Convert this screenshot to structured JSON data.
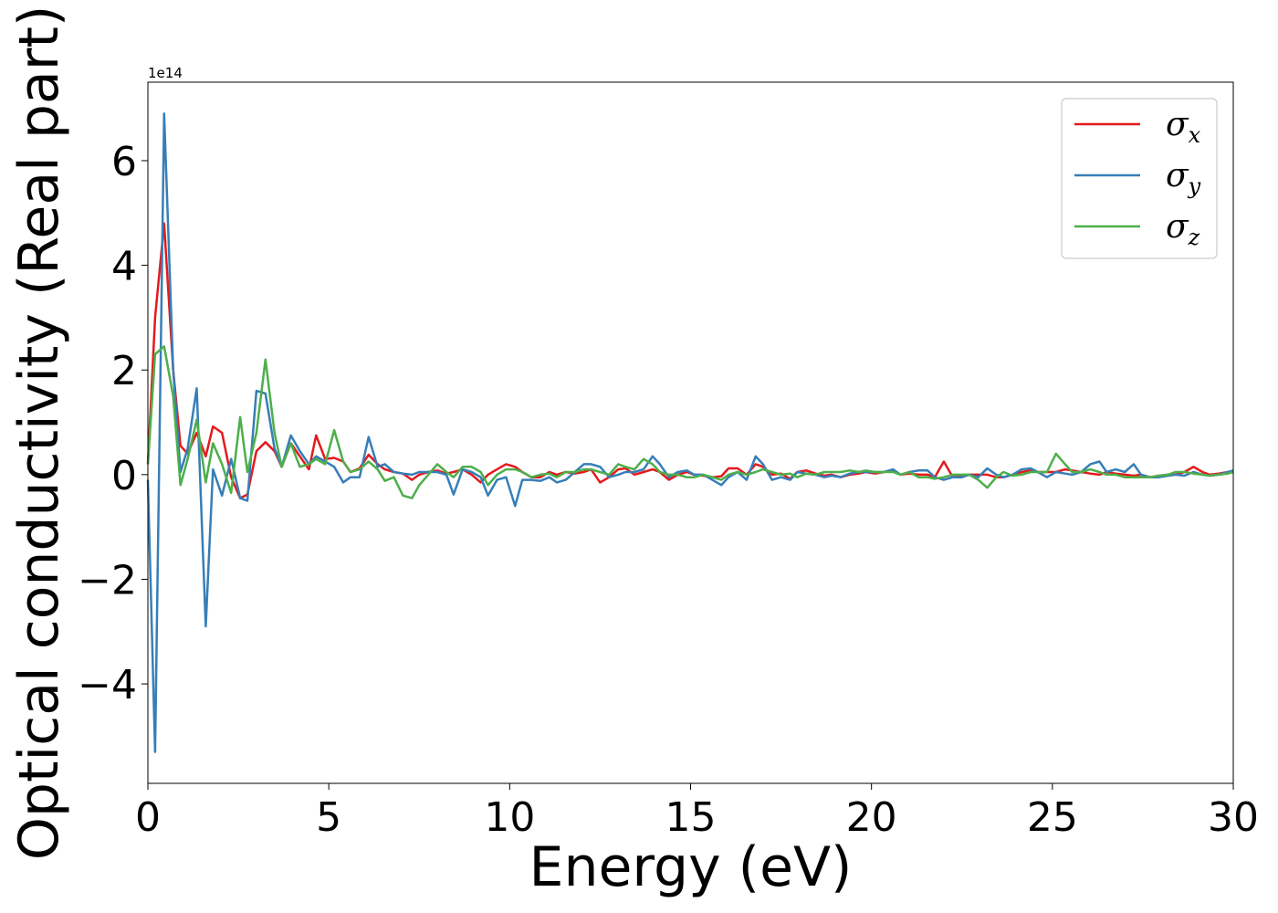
{
  "chart_data": {
    "type": "line",
    "xlabel": "Energy (eV)",
    "ylabel": "Optical conductivity (Real part)",
    "y_offset_text": "1e14",
    "xlim": [
      0,
      30
    ],
    "ylim": [
      -5.9,
      7.5
    ],
    "xticks": [
      0,
      5,
      10,
      15,
      20,
      25,
      30
    ],
    "yticks": [
      -4,
      -2,
      0,
      2,
      4,
      6
    ],
    "grid": false,
    "legend_position": "top-right",
    "x": [
      0,
      0.2,
      0.45,
      0.7,
      0.9,
      1.1,
      1.35,
      1.6,
      1.8,
      2.05,
      2.3,
      2.55,
      2.75,
      3.0,
      3.25,
      3.5,
      3.7,
      3.95,
      4.2,
      4.45,
      4.65,
      4.9,
      5.15,
      5.4,
      5.6,
      5.85,
      6.1,
      6.35,
      6.55,
      6.8,
      7.05,
      7.3,
      7.5,
      7.75,
      8.0,
      8.25,
      8.45,
      8.7,
      8.95,
      9.2,
      9.4,
      9.65,
      9.9,
      10.15,
      10.35,
      10.6,
      10.85,
      11.1,
      11.3,
      11.55,
      11.8,
      12.05,
      12.25,
      12.5,
      12.75,
      13.0,
      13.2,
      13.45,
      13.7,
      13.95,
      14.15,
      14.4,
      14.65,
      14.9,
      15.1,
      15.35,
      15.6,
      15.85,
      16.05,
      16.3,
      16.55,
      16.8,
      17.0,
      17.25,
      17.5,
      17.75,
      17.95,
      18.2,
      18.45,
      18.7,
      18.9,
      19.15,
      19.4,
      19.65,
      19.85,
      20.1,
      20.35,
      20.6,
      20.8,
      21.05,
      21.3,
      21.55,
      21.75,
      22.0,
      22.25,
      22.5,
      22.7,
      22.95,
      23.2,
      23.45,
      23.65,
      23.9,
      24.15,
      24.4,
      24.6,
      24.85,
      25.1,
      25.35,
      25.55,
      25.8,
      26.05,
      26.3,
      26.5,
      26.75,
      27.0,
      27.25,
      27.45,
      27.7,
      27.95,
      28.2,
      28.4,
      28.65,
      28.9,
      29.15,
      29.35,
      29.6,
      29.85,
      30.0
    ],
    "series": [
      {
        "name": "σx",
        "symbol": "σ",
        "subscript": "x",
        "color": "#e41a1c",
        "values": [
          0.2,
          3.0,
          4.8,
          2.0,
          0.55,
          0.4,
          0.8,
          0.35,
          0.92,
          0.8,
          -0.05,
          -0.45,
          -0.38,
          0.45,
          0.62,
          0.45,
          0.15,
          0.6,
          0.35,
          0.1,
          0.75,
          0.3,
          0.32,
          0.25,
          0.05,
          0.12,
          0.38,
          0.2,
          0.1,
          0.05,
          0.02,
          -0.1,
          0.0,
          0.05,
          0.08,
          0.02,
          0.05,
          0.1,
          0.0,
          -0.15,
          0.0,
          0.1,
          0.2,
          0.15,
          0.05,
          -0.05,
          -0.05,
          0.05,
          0.0,
          0.05,
          0.02,
          0.05,
          0.1,
          -0.15,
          -0.05,
          0.1,
          0.12,
          0.0,
          0.05,
          0.1,
          0.05,
          -0.1,
          0.0,
          0.05,
          0.0,
          -0.02,
          -0.05,
          -0.03,
          0.12,
          0.12,
          0.0,
          0.2,
          0.15,
          0.0,
          0.02,
          -0.08,
          0.05,
          0.08,
          0.02,
          -0.02,
          0.0,
          -0.05,
          0.0,
          0.02,
          0.05,
          0.02,
          0.05,
          0.08,
          0.0,
          0.02,
          0.0,
          0.0,
          -0.05,
          0.25,
          -0.05,
          -0.02,
          0.0,
          0.0,
          0.0,
          -0.05,
          -0.05,
          0.0,
          0.05,
          0.08,
          0.05,
          0.05,
          0.05,
          0.1,
          0.08,
          0.05,
          0.02,
          0.0,
          0.05,
          0.02,
          0.0,
          -0.02,
          0.0,
          -0.05,
          -0.02,
          0.0,
          0.0,
          0.05,
          0.15,
          0.05,
          0.0,
          0.02,
          0.05,
          0.05
        ]
      },
      {
        "name": "σy",
        "symbol": "σ",
        "subscript": "y",
        "color": "#377eb8",
        "values": [
          -0.1,
          -5.3,
          6.9,
          2.0,
          0.05,
          0.5,
          1.65,
          -2.9,
          0.1,
          -0.4,
          0.3,
          -0.45,
          -0.5,
          1.6,
          1.55,
          0.5,
          0.15,
          0.75,
          0.45,
          0.2,
          0.35,
          0.25,
          0.15,
          -0.15,
          -0.05,
          -0.05,
          0.72,
          0.15,
          0.2,
          0.05,
          0.02,
          0.0,
          0.05,
          0.05,
          0.05,
          0.0,
          -0.38,
          0.1,
          0.05,
          -0.05,
          -0.4,
          -0.1,
          -0.05,
          -0.6,
          -0.1,
          -0.1,
          -0.12,
          -0.05,
          -0.15,
          -0.1,
          0.05,
          0.2,
          0.2,
          0.15,
          -0.05,
          0.0,
          0.05,
          0.05,
          0.1,
          0.35,
          0.2,
          -0.05,
          0.05,
          0.08,
          0.0,
          0.0,
          -0.1,
          -0.2,
          -0.05,
          0.05,
          -0.1,
          0.35,
          0.2,
          -0.1,
          -0.05,
          -0.1,
          0.05,
          0.02,
          0.0,
          -0.05,
          -0.02,
          -0.05,
          0.02,
          0.05,
          0.05,
          0.05,
          0.05,
          0.1,
          0.0,
          0.05,
          0.08,
          0.08,
          -0.05,
          -0.1,
          -0.05,
          -0.05,
          0.0,
          -0.05,
          0.12,
          0.0,
          -0.05,
          0.0,
          0.1,
          0.12,
          0.05,
          -0.05,
          0.05,
          0.02,
          0.0,
          0.05,
          0.2,
          0.25,
          0.05,
          0.1,
          0.05,
          0.2,
          0.0,
          -0.05,
          -0.05,
          -0.02,
          0.0,
          -0.02,
          0.05,
          0.0,
          -0.02,
          0.0,
          0.05,
          0.08
        ]
      },
      {
        "name": "σz",
        "symbol": "σ",
        "subscript": "z",
        "color": "#4daf4a",
        "values": [
          0.2,
          2.3,
          2.45,
          1.5,
          -0.2,
          0.3,
          1.05,
          -0.15,
          0.6,
          0.2,
          -0.35,
          1.1,
          0.05,
          0.8,
          2.2,
          0.8,
          0.15,
          0.6,
          0.15,
          0.2,
          0.3,
          0.2,
          0.85,
          0.25,
          0.05,
          0.1,
          0.25,
          0.1,
          -0.12,
          -0.05,
          -0.4,
          -0.45,
          -0.2,
          0.0,
          0.2,
          0.05,
          -0.05,
          0.15,
          0.15,
          0.05,
          -0.2,
          0.0,
          0.1,
          0.1,
          0.05,
          -0.05,
          0.0,
          0.02,
          -0.05,
          0.05,
          0.05,
          0.1,
          0.1,
          0.05,
          0.0,
          0.2,
          0.15,
          0.1,
          0.3,
          0.2,
          0.05,
          0.0,
          0.0,
          -0.05,
          -0.05,
          0.0,
          -0.05,
          -0.1,
          0.0,
          0.05,
          0.0,
          0.05,
          0.1,
          0.05,
          0.0,
          0.02,
          -0.05,
          0.02,
          0.0,
          0.05,
          0.05,
          0.05,
          0.08,
          0.05,
          0.08,
          0.05,
          0.05,
          0.05,
          0.0,
          0.05,
          -0.05,
          -0.05,
          -0.08,
          -0.05,
          0.0,
          0.0,
          0.0,
          -0.1,
          -0.25,
          -0.05,
          0.05,
          -0.02,
          0.0,
          0.05,
          0.05,
          0.05,
          0.4,
          0.2,
          0.05,
          0.05,
          0.1,
          0.05,
          0.0,
          0.0,
          -0.05,
          -0.05,
          -0.05,
          -0.05,
          -0.02,
          0.0,
          0.05,
          0.05,
          0.02,
          0.0,
          -0.02,
          0.0,
          0.02,
          0.05
        ]
      }
    ]
  }
}
